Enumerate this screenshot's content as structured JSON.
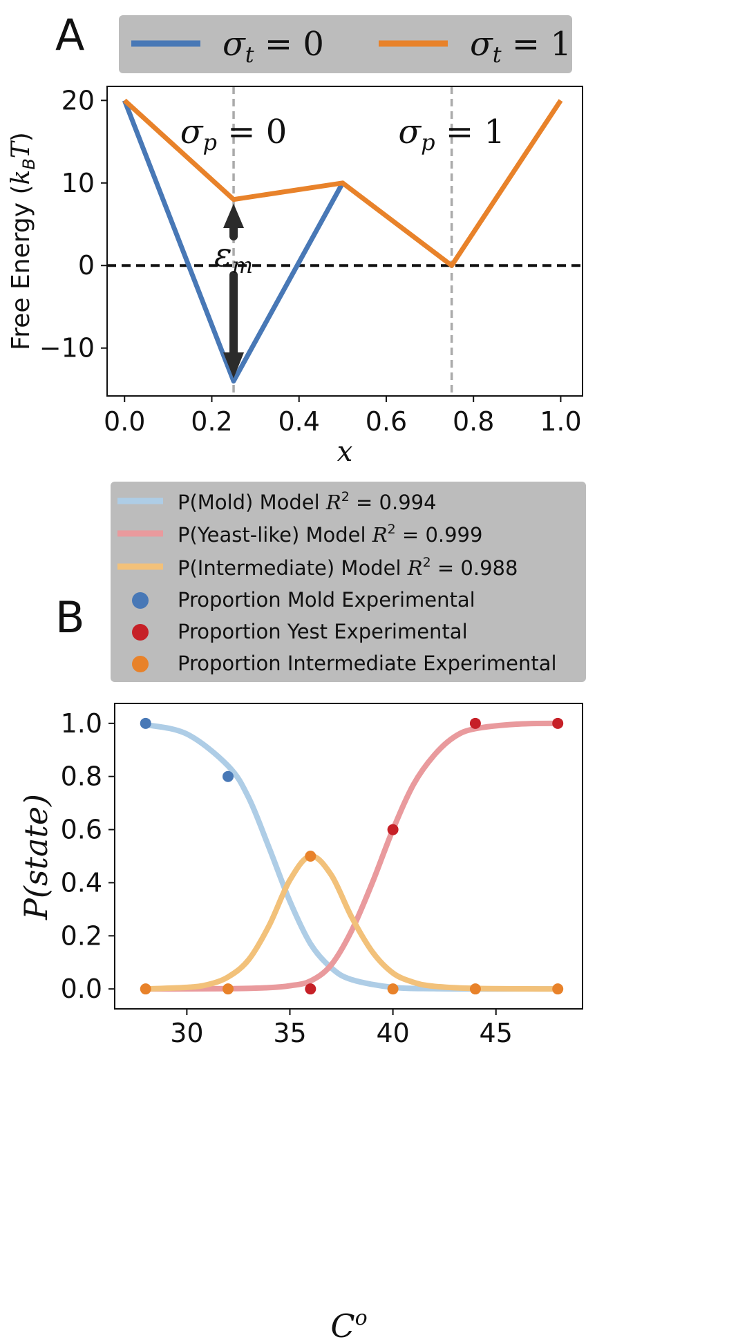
{
  "panels": {
    "a_label": "A",
    "b_label": "B"
  },
  "chart_data": [
    {
      "panel": "A",
      "type": "line",
      "xlabel": "x",
      "ylabel": "Free Energy (k_B T)",
      "xlim": [
        -0.04,
        1.05
      ],
      "ylim": [
        -15.8,
        21.7
      ],
      "xticks": [
        0.0,
        0.2,
        0.4,
        0.6,
        0.8,
        1.0
      ],
      "xtick_labels": [
        "0.0",
        "0.2",
        "0.4",
        "0.6",
        "0.8",
        "1.0"
      ],
      "yticks": [
        20,
        10,
        0,
        -10
      ],
      "ytick_labels": [
        "20",
        "10",
        "0",
        "−10"
      ],
      "grid": false,
      "legend_position": "top",
      "series": [
        {
          "name": "σt = 0",
          "color": "#4878b6",
          "x": [
            0.0,
            0.25,
            0.5
          ],
          "y": [
            20,
            -14,
            10
          ]
        },
        {
          "name": "σt = 1",
          "color": "#e8822a",
          "x": [
            0.0,
            0.25,
            0.5,
            0.75,
            1.0
          ],
          "y": [
            20,
            8,
            10,
            0,
            20
          ]
        }
      ],
      "reference_lines": [
        {
          "orientation": "horizontal",
          "value": 0,
          "style": "dashed",
          "color": "#111111"
        },
        {
          "orientation": "vertical",
          "value": 0.25,
          "style": "dashed",
          "color": "#aaaaaa",
          "label": "σp = 0"
        },
        {
          "orientation": "vertical",
          "value": 0.75,
          "style": "dashed",
          "color": "#aaaaaa",
          "label": "σp = 1"
        }
      ],
      "annotation": {
        "text": "εm",
        "arrow_x": 0.25,
        "arrow_from_y": -14,
        "arrow_to_y": 8
      }
    },
    {
      "panel": "B",
      "type": "line",
      "xlabel": "C°",
      "ylabel": "P(state)",
      "xlim": [
        26.5,
        49.2
      ],
      "ylim": [
        -0.075,
        1.075
      ],
      "xticks": [
        30,
        35,
        40,
        45
      ],
      "xtick_labels": [
        "30",
        "35",
        "40",
        "45"
      ],
      "yticks": [
        1.0,
        0.8,
        0.6,
        0.4,
        0.2,
        0.0
      ],
      "ytick_labels": [
        "1.0",
        "0.8",
        "0.6",
        "0.4",
        "0.2",
        "0.0"
      ],
      "grid": false,
      "legend_position": "top",
      "series": [
        {
          "name": "P(Mold) Model R² = 0.994",
          "kind": "model",
          "color": "#aecde6",
          "x": [
            28,
            30,
            32,
            33,
            34,
            35,
            36,
            37,
            38,
            40,
            42,
            44,
            46,
            48
          ],
          "y": [
            0.995,
            0.96,
            0.84,
            0.72,
            0.53,
            0.33,
            0.17,
            0.08,
            0.035,
            0.006,
            0.001,
            0.0,
            0.0,
            0.0
          ]
        },
        {
          "name": "P(Yeast-like) Model R² = 0.999",
          "kind": "model",
          "color": "#e99a9d",
          "x": [
            28,
            32,
            34,
            35,
            36,
            37,
            38,
            39,
            40,
            41,
            42,
            43,
            44,
            46,
            48
          ],
          "y": [
            0.0,
            0.001,
            0.005,
            0.012,
            0.03,
            0.09,
            0.22,
            0.4,
            0.6,
            0.77,
            0.88,
            0.95,
            0.98,
            0.997,
            1.0
          ]
        },
        {
          "name": "P(Intermediate) Model R² = 0.988",
          "kind": "model",
          "color": "#f2c17a",
          "x": [
            28,
            30,
            31,
            32,
            33,
            34,
            35,
            36,
            37,
            38,
            39,
            40,
            41,
            42,
            44,
            48
          ],
          "y": [
            0.0,
            0.006,
            0.016,
            0.045,
            0.11,
            0.24,
            0.41,
            0.5,
            0.43,
            0.27,
            0.14,
            0.06,
            0.025,
            0.01,
            0.002,
            0.0
          ]
        },
        {
          "name": "Proportion Mold Experimental",
          "kind": "points",
          "color": "#4878b6",
          "x": [
            28,
            32
          ],
          "y": [
            1.0,
            0.8
          ]
        },
        {
          "name": "Proportion Yest Experimental",
          "kind": "points",
          "color": "#c62027",
          "x": [
            36,
            40,
            44,
            48
          ],
          "y": [
            0.0,
            0.6,
            1.0,
            1.0
          ]
        },
        {
          "name": "Proportion Intermediate Experimental",
          "kind": "points",
          "color": "#e8822a",
          "x": [
            28,
            32,
            36,
            40,
            44,
            48
          ],
          "y": [
            0.0,
            0.0,
            0.5,
            0.0,
            0.0,
            0.0
          ]
        }
      ]
    }
  ]
}
